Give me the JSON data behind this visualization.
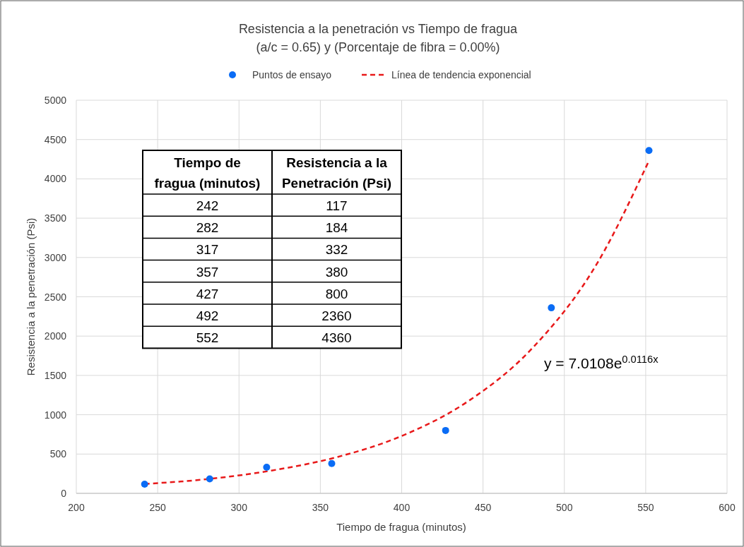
{
  "chart_data": {
    "type": "scatter",
    "title": "Resistencia a la penetración vs Tiempo de fragua",
    "subtitle": "(a/c = 0.65) y (Porcentaje de fibra = 0.00%)",
    "xlabel": "Tiempo de fragua (minutos)",
    "ylabel": "Resistencia a la penetración (Psi)",
    "xlim": [
      200,
      600
    ],
    "xticks": [
      200,
      250,
      300,
      350,
      400,
      450,
      500,
      550,
      600
    ],
    "ylim": [
      0,
      5000
    ],
    "yticks": [
      0,
      500,
      1000,
      1500,
      2000,
      2500,
      3000,
      3500,
      4000,
      4500,
      5000
    ],
    "grid": true,
    "legend": "top",
    "series": [
      {
        "name": "Puntos de ensayo",
        "type": "scatter",
        "marker": "circle",
        "color": "#0a6cf5",
        "x": [
          242,
          282,
          317,
          357,
          427,
          492,
          552
        ],
        "values": [
          117,
          184,
          332,
          380,
          800,
          2360,
          4360
        ]
      },
      {
        "name": "Línea de tendencia exponencial",
        "type": "line",
        "line_style": "dashed",
        "color": "#e8191a",
        "x": [
          242,
          280,
          320,
          360,
          400,
          440,
          480,
          520,
          552
        ],
        "values": [
          120,
          180,
          290,
          460,
          730,
          1160,
          1840,
          2920,
          4230
        ]
      }
    ],
    "annotations": [
      "Tiempo de fragua (minutos)",
      "Resistencia a la Penetración (Psi)",
      "242",
      "117",
      "282",
      "184",
      "317",
      "332",
      "357",
      "380",
      "427",
      "800",
      "492",
      "2360",
      "552",
      "4360",
      "y = 7.0108e$^{0.0116x}$"
    ]
  }
}
